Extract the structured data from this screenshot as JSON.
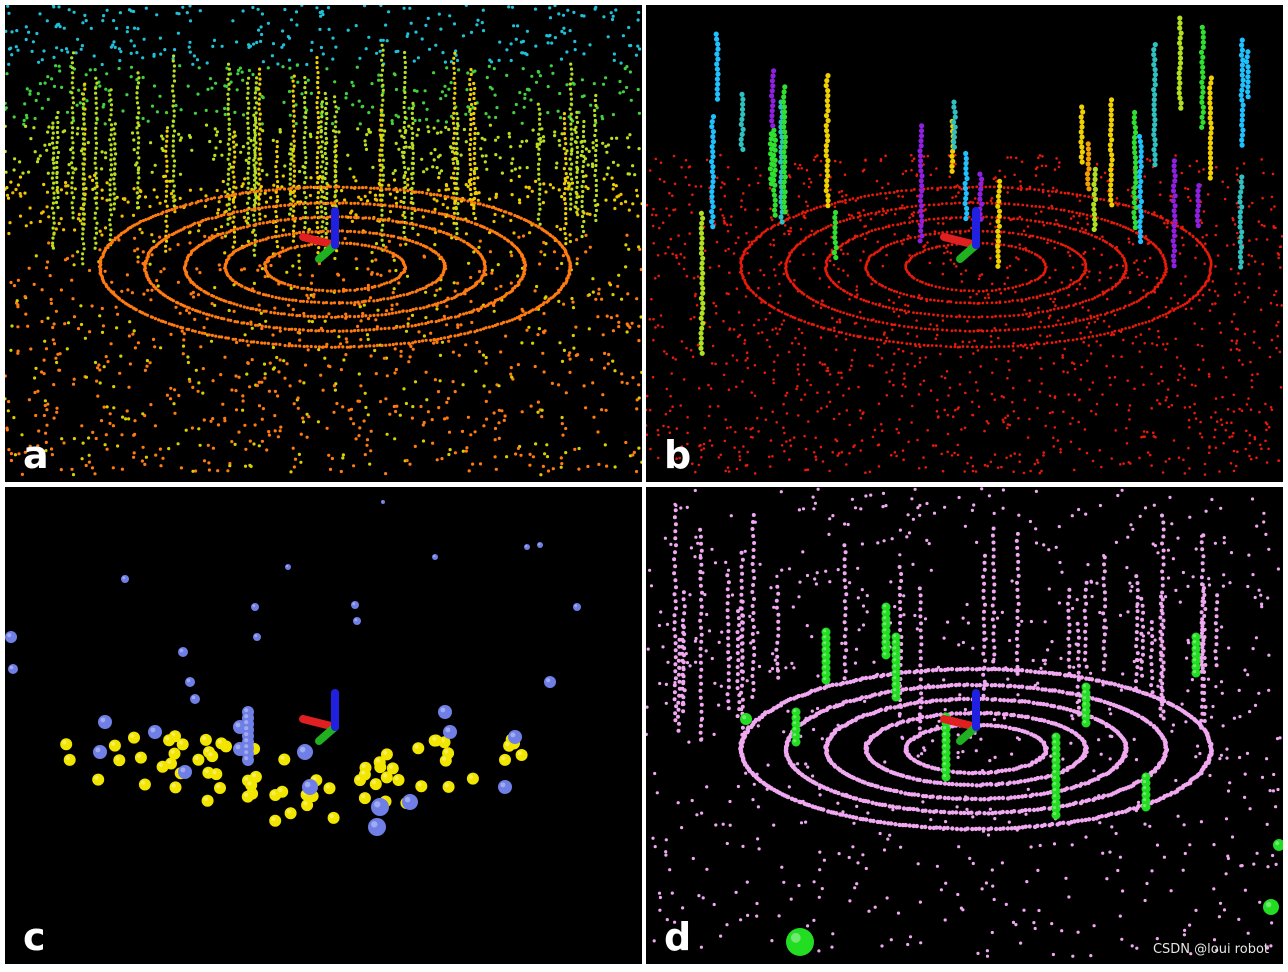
{
  "panels": [
    {
      "id": "a",
      "label": "a",
      "style": "dense-height-colored"
    },
    {
      "id": "b",
      "label": "b",
      "style": "ground-red-clusters-colored"
    },
    {
      "id": "c",
      "label": "c",
      "style": "spheres-yellow-blue"
    },
    {
      "id": "d",
      "label": "d",
      "style": "pink-points-green-spheres"
    }
  ],
  "watermark": "CSDN @loui robot",
  "colors": {
    "background": "#000000",
    "divider": "#ffffff",
    "ground_orange": "#ff7a10",
    "ground_red": "#e81a0a",
    "yellow": "#f2e600",
    "blue_sphere": "#6f7fe6",
    "pink": "#f0a8f0",
    "green": "#22dd22",
    "axis_x": "#e02020",
    "axis_y": "#20b020",
    "axis_z": "#2020e0"
  }
}
